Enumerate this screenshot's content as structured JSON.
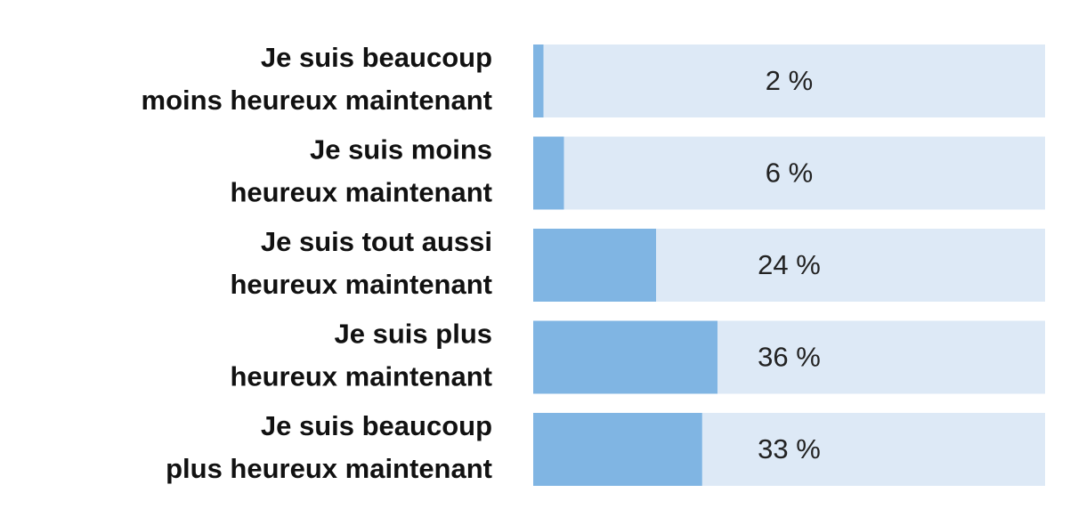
{
  "chart_data": {
    "type": "bar",
    "categories": [
      [
        "Je suis beaucoup",
        "moins heureux maintenant"
      ],
      [
        "Je suis moins",
        "heureux maintenant"
      ],
      [
        "Je suis tout aussi",
        "heureux maintenant"
      ],
      [
        "Je suis plus",
        "heureux maintenant"
      ],
      [
        "Je suis beaucoup",
        "plus heureux maintenant"
      ]
    ],
    "values": [
      2,
      6,
      24,
      36,
      33
    ],
    "value_labels": [
      "2 %",
      "6 %",
      "24 %",
      "36 %",
      "33 %"
    ],
    "xlim": [
      0,
      100
    ],
    "color": "#80b5e3",
    "track_color": "#dde9f6"
  }
}
